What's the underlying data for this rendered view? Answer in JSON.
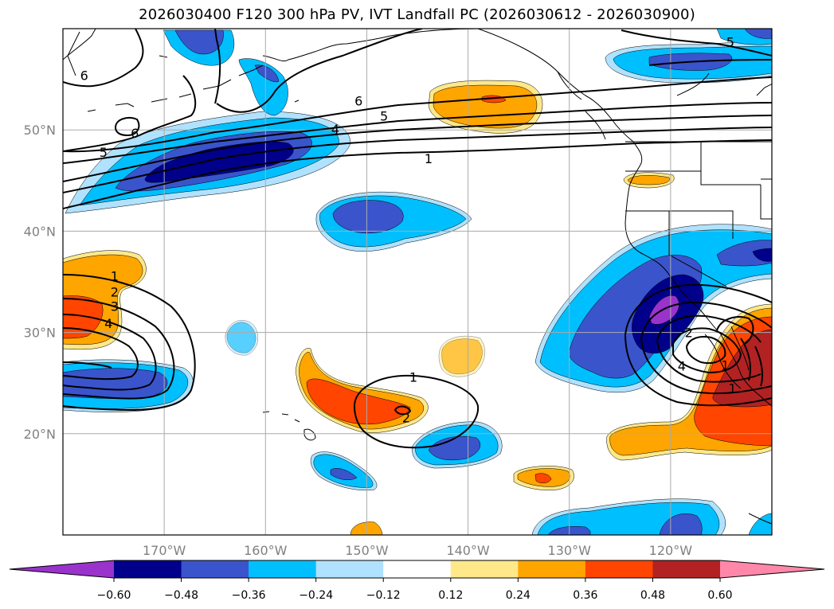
{
  "title": "2026030400 F120 300 hPa PV, IVT Landfall PC (2026030612 - 2026030900)",
  "map": {
    "projection": "PlateCarree",
    "lon_range": [
      -180,
      -110
    ],
    "lat_range": [
      10,
      60
    ],
    "x_ticks": [
      {
        "lon": -170,
        "label": "170°W"
      },
      {
        "lon": -160,
        "label": "160°W"
      },
      {
        "lon": -150,
        "label": "150°W"
      },
      {
        "lon": -140,
        "label": "140°W"
      },
      {
        "lon": -130,
        "label": "130°W"
      },
      {
        "lon": -120,
        "label": "120°W"
      }
    ],
    "y_ticks": [
      {
        "lat": 20,
        "label": "20°N"
      },
      {
        "lat": 30,
        "label": "30°N"
      },
      {
        "lat": 40,
        "label": "40°N"
      },
      {
        "lat": 50,
        "label": "50°N"
      }
    ],
    "grid": true
  },
  "colors": {
    "neg_extend": "#9933cc",
    "n60": "#00008b",
    "n48": "#3a54cc",
    "n36": "#00bfff",
    "n24": "#b0e2ff",
    "zero": "#ffffff",
    "p12": "#ffe88a",
    "p24": "#ffa500",
    "p36": "#ff4500",
    "p48": "#b22222",
    "pos_extend": "#ff88aa"
  },
  "colorbar": {
    "levels": [
      -0.6,
      -0.48,
      -0.36,
      -0.24,
      -0.12,
      0.12,
      0.24,
      0.36,
      0.48,
      0.6
    ],
    "labels": [
      "−0.60",
      "−0.48",
      "−0.36",
      "−0.24",
      "−0.12",
      "0.12",
      "0.24",
      "0.36",
      "0.48",
      "0.60"
    ],
    "bins": [
      "n60",
      "n48",
      "n36",
      "n24",
      "zero",
      "p12",
      "p24",
      "p36",
      "p48"
    ],
    "extend": "both"
  },
  "contour_labels": [
    {
      "text": "6",
      "lon": -177.9,
      "lat": 55.4
    },
    {
      "text": "6",
      "lon": -150.8,
      "lat": 52.9
    },
    {
      "text": "5",
      "lon": -148.3,
      "lat": 51.4
    },
    {
      "text": "4",
      "lon": -153.1,
      "lat": 50.1
    },
    {
      "text": "6",
      "lon": -172.9,
      "lat": 49.7
    },
    {
      "text": "5",
      "lon": -176.0,
      "lat": 47.8
    },
    {
      "text": "1",
      "lon": -143.9,
      "lat": 47.2
    },
    {
      "text": "5",
      "lon": -114.1,
      "lat": 58.7
    },
    {
      "text": "1",
      "lon": -174.9,
      "lat": 35.6
    },
    {
      "text": "2",
      "lon": -174.9,
      "lat": 34.0
    },
    {
      "text": "3",
      "lon": -174.9,
      "lat": 32.6
    },
    {
      "text": "4",
      "lon": -175.5,
      "lat": 30.9
    },
    {
      "text": "1",
      "lon": -145.4,
      "lat": 25.6
    },
    {
      "text": "2",
      "lon": -146.1,
      "lat": 21.6
    },
    {
      "text": "2",
      "lon": -118.2,
      "lat": 30.0
    },
    {
      "text": "4",
      "lon": -118.9,
      "lat": 26.7
    },
    {
      "text": "1",
      "lon": -113.9,
      "lat": 24.5
    },
    {
      "text": "1",
      "lon": -114.6,
      "lat": 26.8
    }
  ]
}
